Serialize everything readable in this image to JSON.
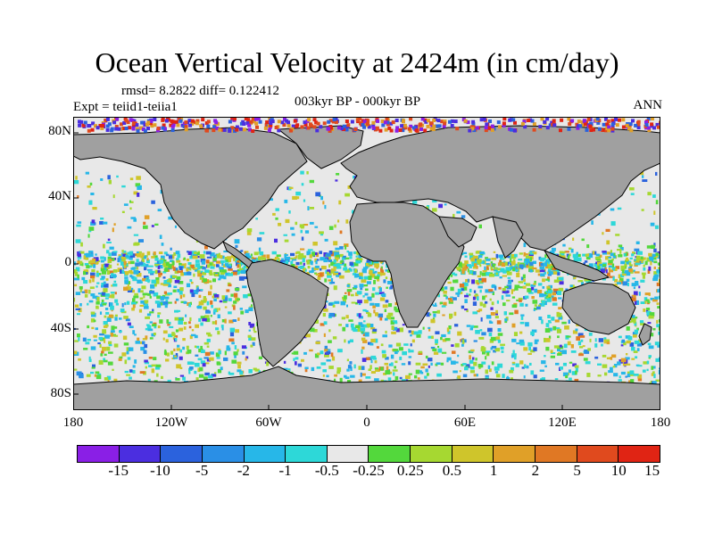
{
  "title": "Ocean Vertical Velocity at 2424m (in cm/day)",
  "stats": "rmsd= 8.2822 diff= 0.122412",
  "experiment": "Expt = teiid1-teiia1",
  "period": "003kyr BP - 000kyr BP",
  "season": "ANN",
  "map": {
    "projection": "cylindrical equidistant",
    "lon_range": [
      -180,
      180
    ],
    "lat_range": [
      -90,
      90
    ],
    "lat_ticks": [
      "80N",
      "40N",
      "0",
      "40S",
      "80S"
    ],
    "lon_ticks": [
      "180",
      "120W",
      "60W",
      "0",
      "60E",
      "120E",
      "180"
    ],
    "land_color": "#a0a0a0",
    "coast_color": "#000000"
  },
  "colorbar": {
    "colors": [
      "#8a1fe6",
      "#4b2ee0",
      "#2b62dd",
      "#2a8fe6",
      "#27b7e8",
      "#2dd8d8",
      "#e8e8e8",
      "#53d83c",
      "#a6d831",
      "#cfc52b",
      "#e0a028",
      "#e07824",
      "#e04a1e",
      "#e02414"
    ],
    "labels": [
      "-15",
      "-10",
      "-5",
      "-2",
      "-1",
      "-0.5",
      "-0.25",
      "0.25",
      "0.5",
      "1",
      "2",
      "5",
      "10",
      "15"
    ]
  }
}
